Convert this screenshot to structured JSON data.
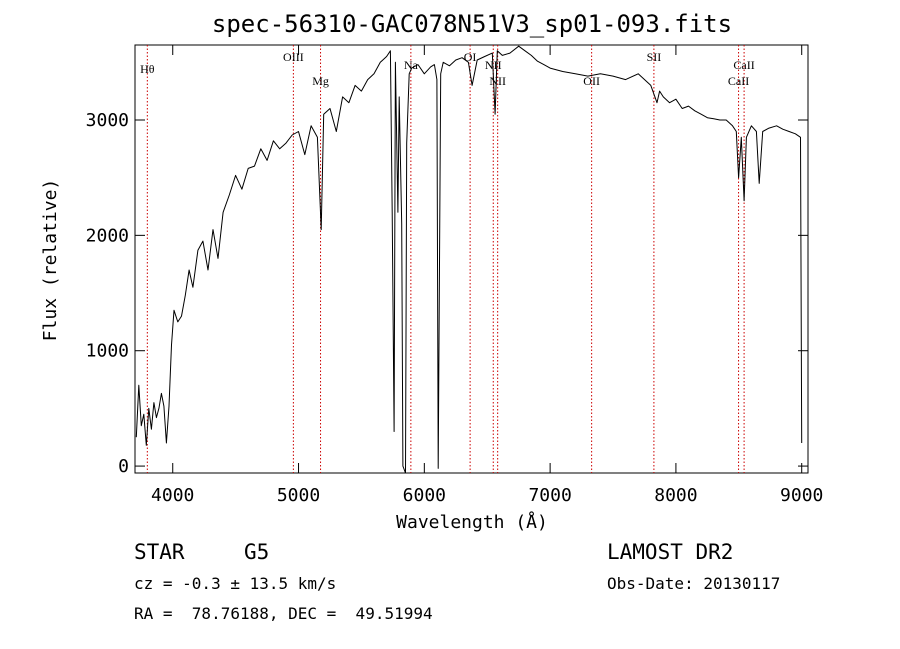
{
  "chart_data": {
    "type": "line",
    "title": "spec-56310-GAC078N51V3_sp01-093.fits",
    "xlabel": "Wavelength (Å)",
    "ylabel": "Flux (relative)",
    "xlim": [
      3700,
      9050
    ],
    "ylim": [
      -60,
      3650
    ],
    "xticks": [
      4000,
      5000,
      6000,
      7000,
      8000,
      9000
    ],
    "yticks": [
      0,
      1000,
      2000,
      3000
    ],
    "grid": false,
    "series": [
      {
        "name": "",
        "x": [
          3710,
          3730,
          3750,
          3770,
          3790,
          3810,
          3830,
          3850,
          3870,
          3890,
          3910,
          3930,
          3950,
          3970,
          3990,
          4010,
          4040,
          4070,
          4100,
          4130,
          4160,
          4200,
          4240,
          4280,
          4320,
          4360,
          4400,
          4450,
          4500,
          4550,
          4600,
          4650,
          4700,
          4750,
          4800,
          4850,
          4900,
          4950,
          5000,
          5050,
          5100,
          5150,
          5180,
          5200,
          5250,
          5300,
          5350,
          5400,
          5450,
          5500,
          5550,
          5600,
          5650,
          5700,
          5730,
          5745,
          5760,
          5770,
          5790,
          5800,
          5820,
          5830,
          5850,
          5860,
          5880,
          5900,
          5950,
          6000,
          6050,
          6080,
          6100,
          6110,
          6130,
          6150,
          6200,
          6250,
          6300,
          6350,
          6380,
          6420,
          6480,
          6540,
          6563,
          6580,
          6620,
          6680,
          6750,
          6800,
          6850,
          6900,
          6950,
          7000,
          7100,
          7200,
          7300,
          7400,
          7500,
          7600,
          7700,
          7800,
          7850,
          7870,
          7900,
          7950,
          8000,
          8050,
          8100,
          8150,
          8200,
          8250,
          8300,
          8350,
          8400,
          8450,
          8480,
          8498,
          8520,
          8542,
          8560,
          8600,
          8640,
          8662,
          8690,
          8740,
          8800,
          8850,
          8900,
          8950,
          8990,
          9000
        ],
        "y": [
          250,
          700,
          350,
          450,
          180,
          500,
          320,
          550,
          420,
          500,
          630,
          520,
          200,
          520,
          1050,
          1350,
          1250,
          1300,
          1480,
          1700,
          1550,
          1870,
          1950,
          1700,
          2050,
          1800,
          2200,
          2350,
          2520,
          2400,
          2580,
          2600,
          2750,
          2650,
          2820,
          2750,
          2800,
          2870,
          2900,
          2700,
          2950,
          2850,
          2050,
          3050,
          3100,
          2900,
          3200,
          3150,
          3300,
          3250,
          3350,
          3400,
          3500,
          3550,
          3600,
          2200,
          300,
          3500,
          2200,
          3200,
          2100,
          0,
          -80,
          2800,
          3400,
          3450,
          3480,
          3400,
          3460,
          3480,
          3350,
          -20,
          3400,
          3500,
          3470,
          3520,
          3540,
          3500,
          3300,
          3520,
          3550,
          3580,
          3050,
          3600,
          3560,
          3580,
          3640,
          3600,
          3560,
          3510,
          3480,
          3450,
          3420,
          3400,
          3380,
          3400,
          3380,
          3350,
          3400,
          3300,
          3150,
          3250,
          3200,
          3150,
          3180,
          3100,
          3120,
          3080,
          3050,
          3020,
          3010,
          3000,
          3000,
          2950,
          2900,
          2500,
          2850,
          2300,
          2850,
          2950,
          2900,
          2450,
          2900,
          2930,
          2950,
          2920,
          2900,
          2880,
          2850,
          200
        ]
      }
    ],
    "line_markers": [
      {
        "label": "Hθ",
        "x": 3798
      },
      {
        "label": "OIII",
        "x": 4959
      },
      {
        "label": "Mg",
        "x": 5175
      },
      {
        "label": "Na",
        "x": 5893
      },
      {
        "label": "OI",
        "x": 6364
      },
      {
        "label": "NII",
        "x": 6548
      },
      {
        "label": "NII",
        "x": 6583
      },
      {
        "label": "OII",
        "x": 7330
      },
      {
        "label": "SII",
        "x": 7825
      },
      {
        "label": "CaII",
        "x": 8542
      },
      {
        "label": "CaII",
        "x": 8498
      }
    ]
  },
  "info": {
    "object_class": "STAR",
    "subclass": "G5",
    "survey": "LAMOST DR2",
    "redshift": "cz = -0.3 ± 13.5 km/s",
    "obs_date": "Obs-Date: 20130117",
    "coords": "RA =  78.76188, DEC =  49.51994"
  },
  "colors": {
    "spectrum": "#000000",
    "line_markers": "#cc0000",
    "background": "#ffffff"
  }
}
